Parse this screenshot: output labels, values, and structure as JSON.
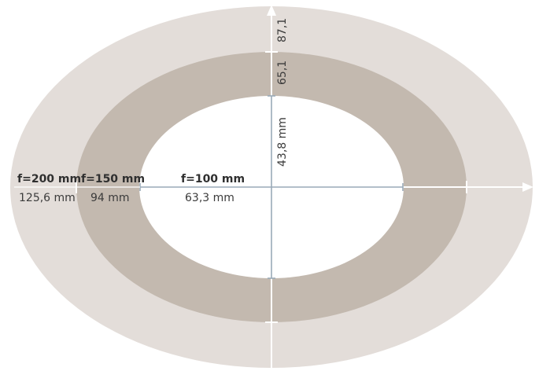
{
  "colors": {
    "outer_ellipse": "#e3ddd9",
    "middle_ellipse": "#c3b9af",
    "inner_ellipse": "#ffffff",
    "axis": "#ffffff",
    "measure_line": "#9aaab8",
    "text": "#3b3b3b"
  },
  "ellipses": [
    {
      "focal_length": "f=200 mm",
      "horizontal": "125,6 mm",
      "vertical": "87,1"
    },
    {
      "focal_length": "f=150 mm",
      "horizontal": "94 mm",
      "vertical": "65,1"
    },
    {
      "focal_length": "f=100 mm",
      "horizontal": "63,3 mm",
      "vertical": "43,8 mm"
    }
  ]
}
